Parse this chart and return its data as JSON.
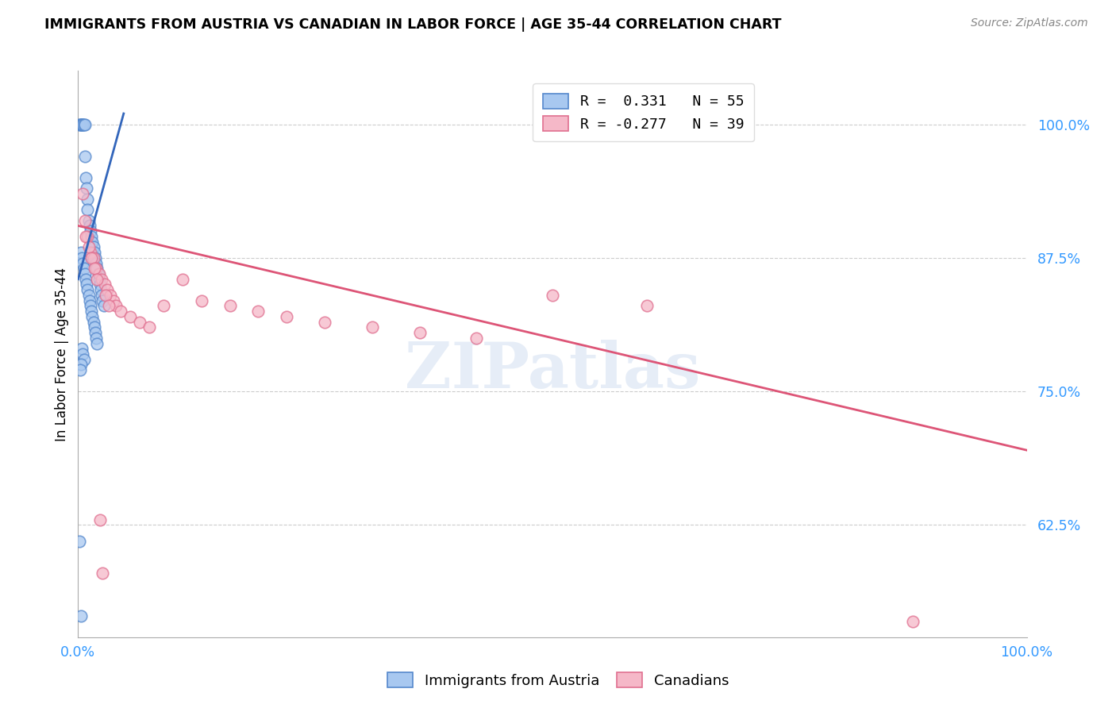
{
  "title": "IMMIGRANTS FROM AUSTRIA VS CANADIAN IN LABOR FORCE | AGE 35-44 CORRELATION CHART",
  "source": "Source: ZipAtlas.com",
  "ylabel": "In Labor Force | Age 35-44",
  "xlim": [
    0.0,
    1.0
  ],
  "ylim": [
    0.52,
    1.05
  ],
  "yticks": [
    0.625,
    0.75,
    0.875,
    1.0
  ],
  "ytick_labels": [
    "62.5%",
    "75.0%",
    "87.5%",
    "100.0%"
  ],
  "xticks": [
    0.0,
    1.0
  ],
  "xtick_labels": [
    "0.0%",
    "100.0%"
  ],
  "blue_R": 0.331,
  "blue_N": 55,
  "pink_R": -0.277,
  "pink_N": 39,
  "blue_color": "#A8C8F0",
  "pink_color": "#F5B8C8",
  "blue_edge_color": "#5588CC",
  "pink_edge_color": "#E07090",
  "blue_line_color": "#3366BB",
  "pink_line_color": "#DD5577",
  "legend_label_blue": "Immigrants from Austria",
  "legend_label_pink": "Canadians",
  "watermark": "ZIPatlas",
  "blue_scatter_x": [
    0.001,
    0.002,
    0.003,
    0.004,
    0.005,
    0.005,
    0.006,
    0.007,
    0.007,
    0.008,
    0.009,
    0.01,
    0.01,
    0.011,
    0.012,
    0.013,
    0.014,
    0.015,
    0.016,
    0.017,
    0.018,
    0.019,
    0.02,
    0.021,
    0.022,
    0.023,
    0.024,
    0.025,
    0.026,
    0.027,
    0.003,
    0.004,
    0.005,
    0.006,
    0.007,
    0.008,
    0.009,
    0.01,
    0.011,
    0.012,
    0.013,
    0.014,
    0.015,
    0.016,
    0.017,
    0.018,
    0.019,
    0.02,
    0.004,
    0.005,
    0.006,
    0.003,
    0.002,
    0.001,
    0.003
  ],
  "blue_scatter_y": [
    1.0,
    1.0,
    1.0,
    1.0,
    1.0,
    1.0,
    1.0,
    1.0,
    0.97,
    0.95,
    0.94,
    0.93,
    0.92,
    0.91,
    0.905,
    0.9,
    0.895,
    0.89,
    0.885,
    0.88,
    0.875,
    0.87,
    0.865,
    0.86,
    0.855,
    0.85,
    0.845,
    0.84,
    0.835,
    0.83,
    0.88,
    0.875,
    0.87,
    0.865,
    0.86,
    0.855,
    0.85,
    0.845,
    0.84,
    0.835,
    0.83,
    0.825,
    0.82,
    0.815,
    0.81,
    0.805,
    0.8,
    0.795,
    0.79,
    0.785,
    0.78,
    0.775,
    0.77,
    0.61,
    0.54
  ],
  "pink_scatter_x": [
    0.005,
    0.007,
    0.01,
    0.013,
    0.016,
    0.019,
    0.022,
    0.025,
    0.028,
    0.031,
    0.034,
    0.037,
    0.04,
    0.045,
    0.055,
    0.065,
    0.075,
    0.09,
    0.11,
    0.13,
    0.16,
    0.19,
    0.22,
    0.26,
    0.31,
    0.36,
    0.42,
    0.5,
    0.6,
    0.008,
    0.011,
    0.014,
    0.017,
    0.02,
    0.023,
    0.026,
    0.029,
    0.032,
    0.88
  ],
  "pink_scatter_y": [
    0.935,
    0.91,
    0.895,
    0.88,
    0.875,
    0.865,
    0.86,
    0.855,
    0.85,
    0.845,
    0.84,
    0.835,
    0.83,
    0.825,
    0.82,
    0.815,
    0.81,
    0.83,
    0.855,
    0.835,
    0.83,
    0.825,
    0.82,
    0.815,
    0.81,
    0.805,
    0.8,
    0.84,
    0.83,
    0.895,
    0.885,
    0.875,
    0.865,
    0.855,
    0.63,
    0.58,
    0.84,
    0.83,
    0.535
  ],
  "blue_trendline_x": [
    0.0,
    0.048
  ],
  "blue_trendline_y": [
    0.855,
    1.01
  ],
  "pink_trendline_x": [
    0.0,
    1.0
  ],
  "pink_trendline_y": [
    0.905,
    0.695
  ]
}
